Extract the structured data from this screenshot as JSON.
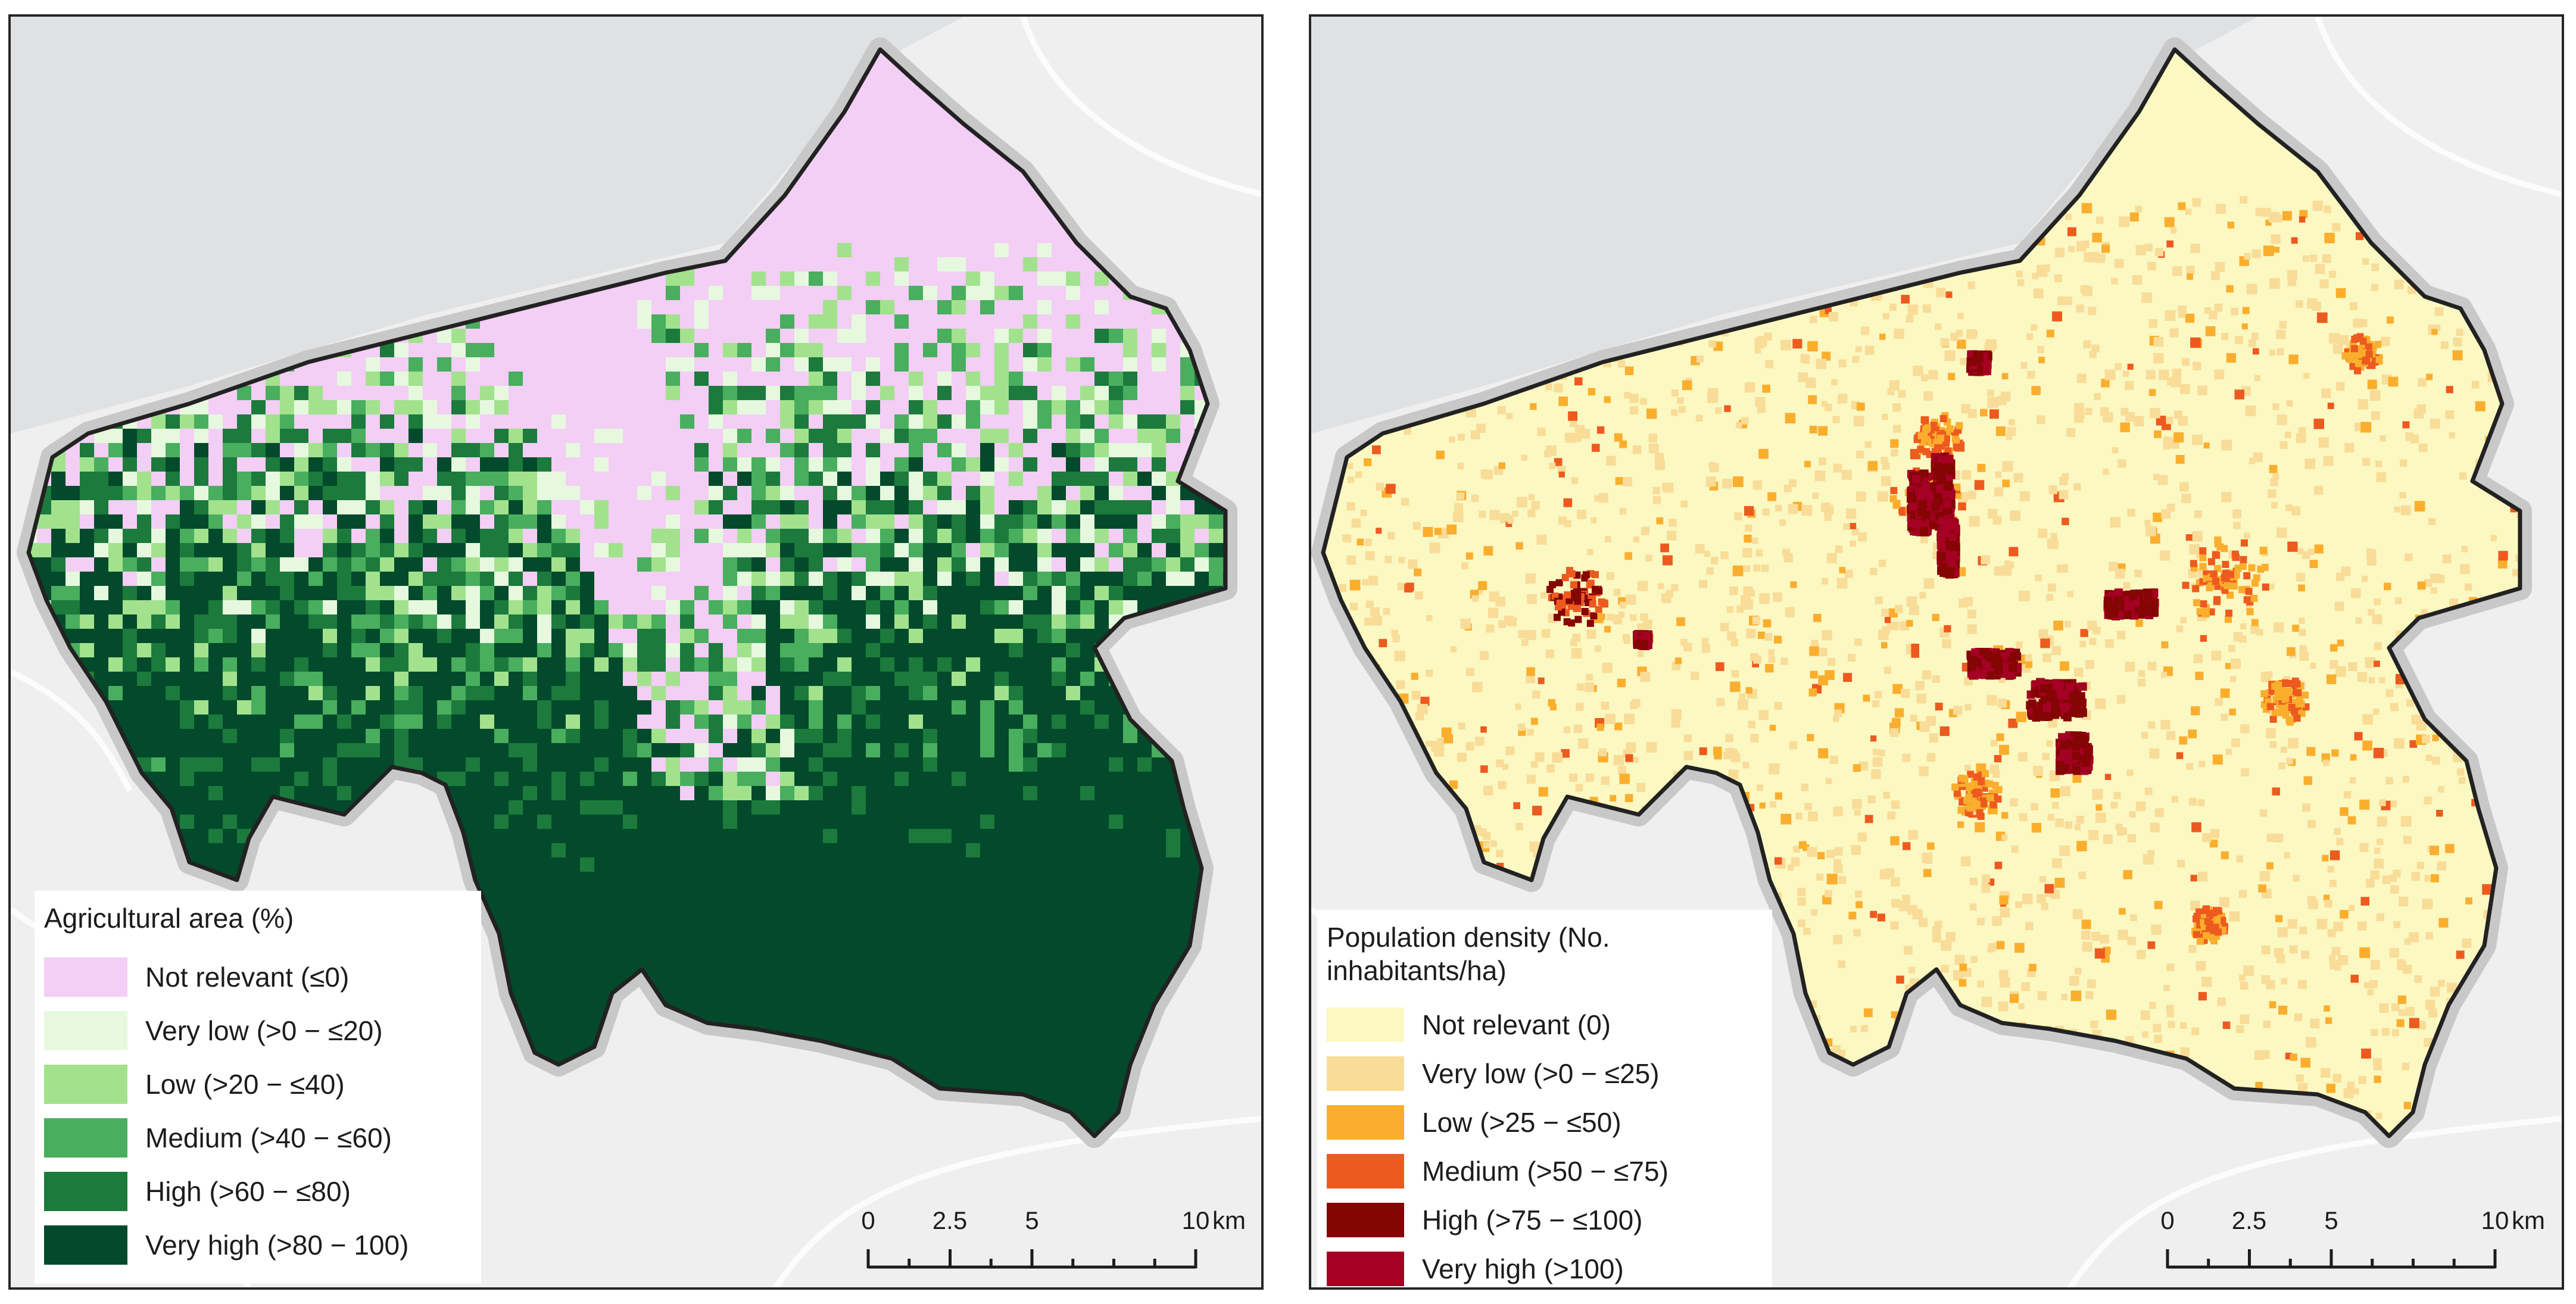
{
  "panels": [
    {
      "id": "agri",
      "legend": {
        "title": "Agricultural area (%)",
        "items": [
          {
            "label": "Not relevant (≤0)",
            "color": "#f3cef5"
          },
          {
            "label": "Very low (>0 − ≤20)",
            "color": "#e6f9df"
          },
          {
            "label": "Low (>20 − ≤40)",
            "color": "#a2e28d"
          },
          {
            "label": "Medium (>40 − ≤60)",
            "color": "#49ae5e"
          },
          {
            "label": "High (>60 − ≤80)",
            "color": "#1c7a3c"
          },
          {
            "label": "Very high (>80 − 100)",
            "color": "#024a2b"
          }
        ]
      },
      "scalebar": {
        "labels": [
          "0",
          "2.5",
          "5",
          "10"
        ],
        "unit": "km"
      }
    },
    {
      "id": "pop",
      "legend": {
        "title": "Population density (No.\ninhabitants/ha)",
        "items": [
          {
            "label": "Not relevant (0)",
            "color": "#fbf8c2"
          },
          {
            "label": "Very low (>0 − ≤25)",
            "color": "#f8dc98"
          },
          {
            "label": "Low (>25 − ≤50)",
            "color": "#fbae2d"
          },
          {
            "label": "Medium (>50 − ≤75)",
            "color": "#ed5a1f"
          },
          {
            "label": "High (>75 − ≤100)",
            "color": "#850404"
          },
          {
            "label": "Very high (>100)",
            "color": "#a40124"
          }
        ]
      },
      "scalebar": {
        "labels": [
          "0",
          "2.5",
          "5",
          "10"
        ],
        "unit": "km"
      }
    }
  ],
  "colors": {
    "basemap_land": "#efefef",
    "basemap_sea": "#dfe1e2",
    "boundary": "#222222",
    "boundary_halo": "#c8c8c8"
  }
}
